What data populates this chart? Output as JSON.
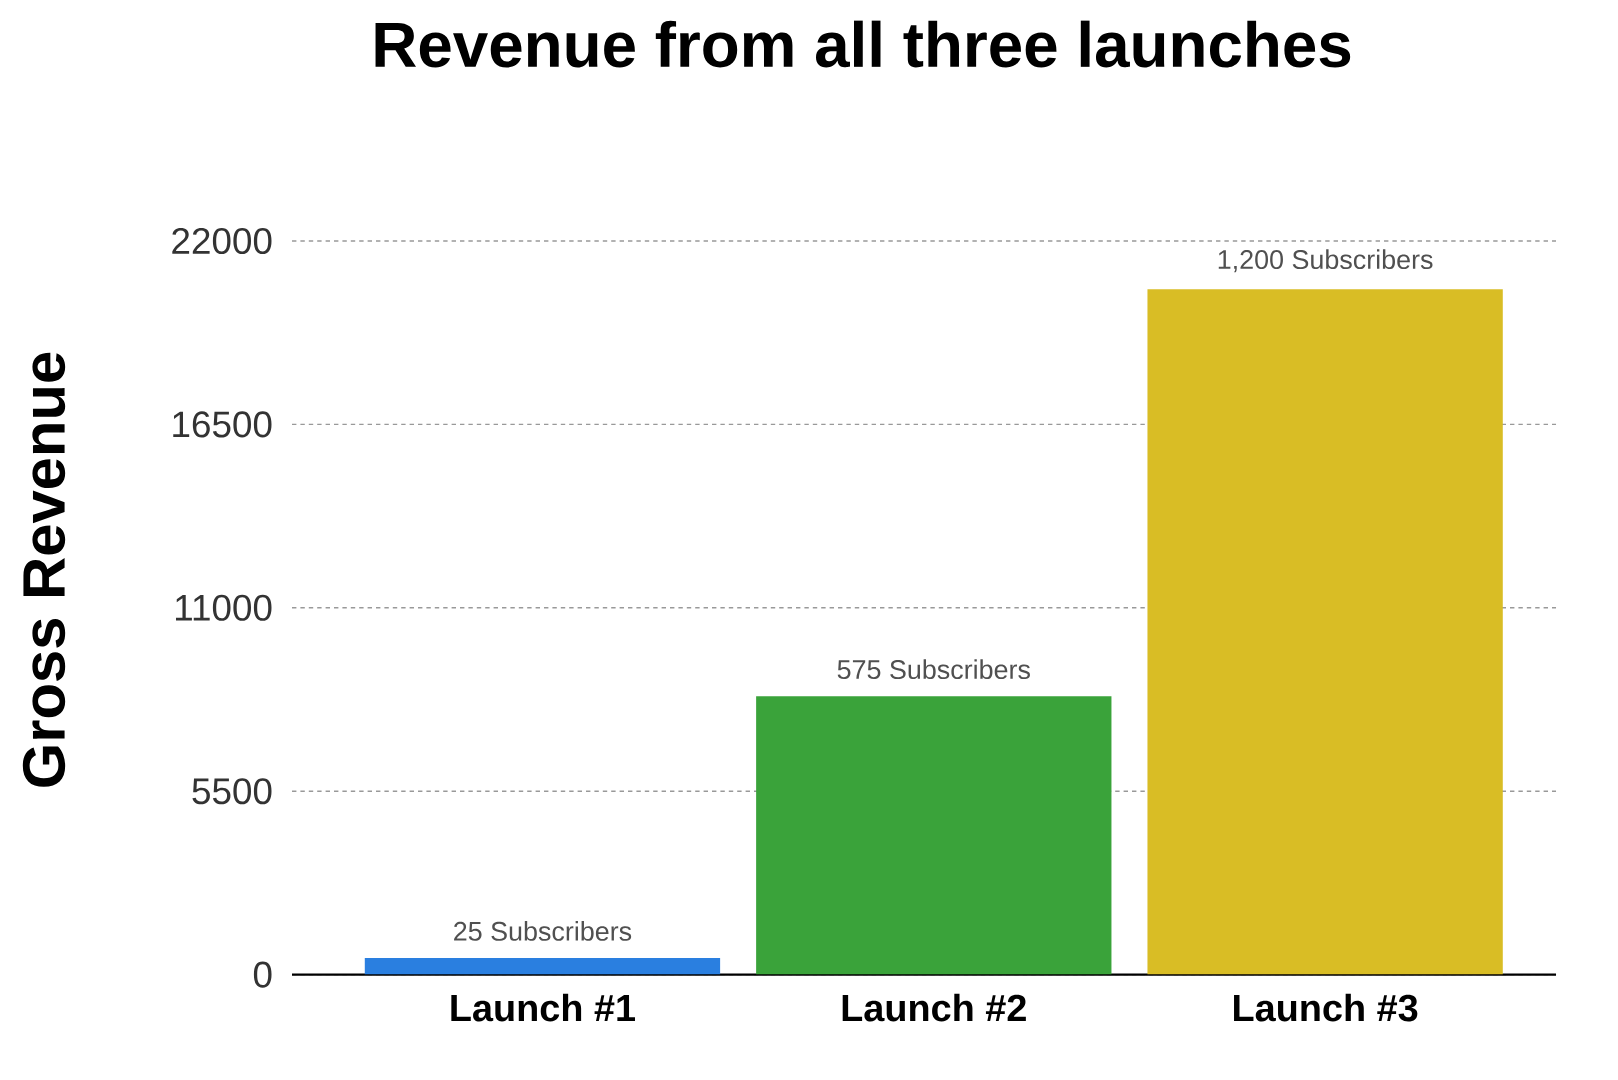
{
  "chart_data": {
    "type": "bar",
    "title": "Revenue from all three launches",
    "ylabel": "Gross Revenue",
    "categories": [
      "Launch #1",
      "Launch #2",
      "Launch #3"
    ],
    "values": [
      500,
      8350,
      20550
    ],
    "colors": [
      "#2a7fe0",
      "#3aa33a",
      "#d9bd25"
    ],
    "annotations": [
      {
        "text": "25 Subscribers",
        "x": "Launch #1",
        "y": 500
      },
      {
        "text": "575 Subscribers",
        "x": "Launch #2",
        "y": 8350
      },
      {
        "text": "1,200 Subscribers",
        "x": "Launch #3",
        "y": 20550
      }
    ],
    "ylim": [
      0,
      22000
    ],
    "yticks": [
      0,
      5500,
      11000,
      16500,
      22000
    ],
    "grid": "y"
  }
}
